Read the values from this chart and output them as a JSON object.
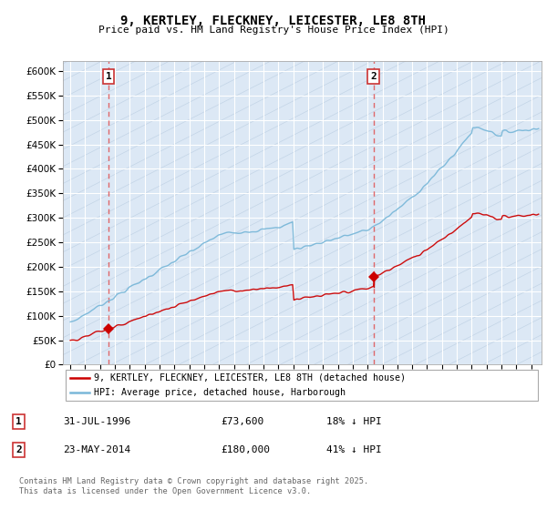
{
  "title": "9, KERTLEY, FLECKNEY, LEICESTER, LE8 8TH",
  "subtitle": "Price paid vs. HM Land Registry's House Price Index (HPI)",
  "legend_line1": "9, KERTLEY, FLECKNEY, LEICESTER, LE8 8TH (detached house)",
  "legend_line2": "HPI: Average price, detached house, Harborough",
  "footer": "Contains HM Land Registry data © Crown copyright and database right 2025.\nThis data is licensed under the Open Government Licence v3.0.",
  "point1_date": "31-JUL-1996",
  "point1_price": "£73,600",
  "point1_hpi": "18% ↓ HPI",
  "point1_year": 1996.58,
  "point1_value": 73600,
  "point2_date": "23-MAY-2014",
  "point2_price": "£180,000",
  "point2_hpi": "41% ↓ HPI",
  "point2_year": 2014.39,
  "point2_value": 180000,
  "hpi_color": "#7ab8d9",
  "property_color": "#cc0000",
  "marker_color": "#cc0000",
  "vline_color": "#e05050",
  "bg_color": "#dce8f5",
  "hatch_color": "#b8cce0",
  "grid_color": "#ffffff",
  "ylim": [
    0,
    620000
  ],
  "yticks": [
    0,
    50000,
    100000,
    150000,
    200000,
    250000,
    300000,
    350000,
    400000,
    450000,
    500000,
    550000,
    600000
  ],
  "xlim_start": 1993.5,
  "xlim_end": 2025.7
}
